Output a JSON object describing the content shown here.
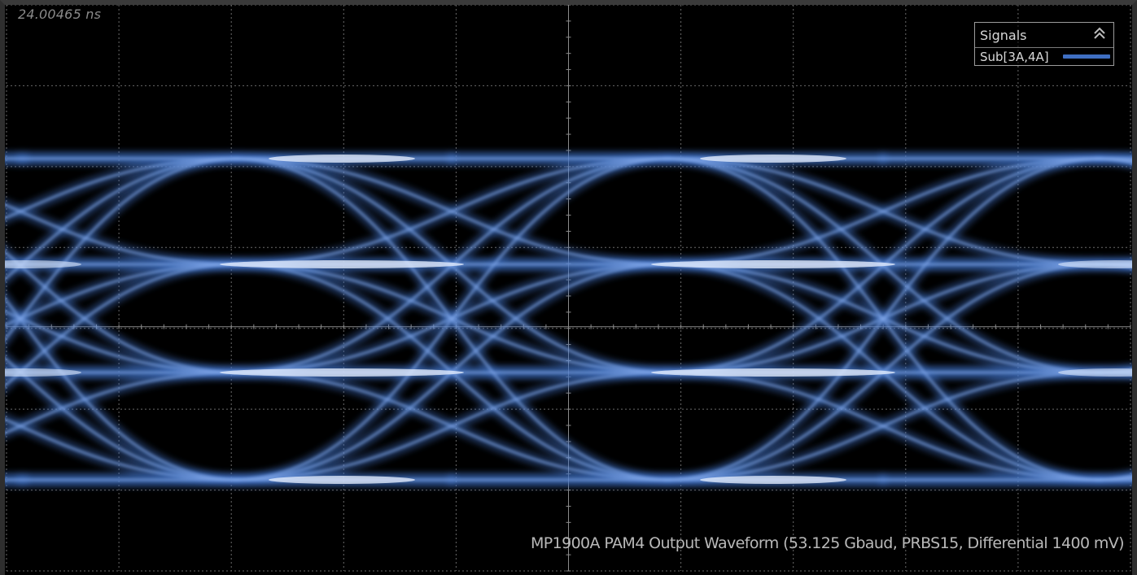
{
  "display": {
    "timestamp": "24.00465 ns",
    "caption": "MP1900A PAM4 Output Waveform (53.125 Gbaud, PRBS15, Differential 1400 mV)"
  },
  "legend": {
    "title": "Signals",
    "collapse_icon": "double-chevron-up-icon",
    "signals": [
      {
        "name": "Sub[3A,4A]",
        "color": "#3f6fc2"
      }
    ]
  },
  "colors": {
    "background": "#000000",
    "trace_core": "#3f6fc2",
    "trace_highlight": "#e8f0ff",
    "grid": "#6a6a6a"
  }
}
